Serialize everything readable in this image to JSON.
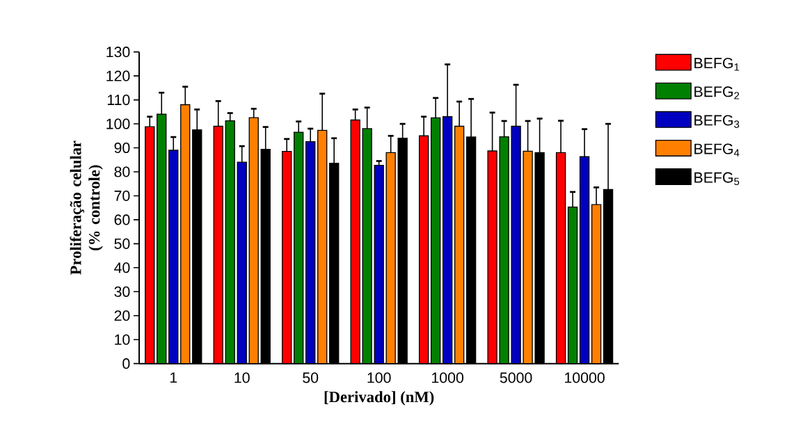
{
  "chart_data": {
    "type": "bar",
    "xlabel": "[Derivado] (nM)",
    "ylabel": "Proliferação celular (% controle)",
    "categories": [
      "1",
      "10",
      "50",
      "100",
      "1000",
      "5000",
      "10000"
    ],
    "series": [
      {
        "name": "BEFG$_{1}$",
        "color": "#ff0000",
        "values": [
          98.8,
          99,
          88.5,
          101.6,
          95,
          88.7,
          88
        ],
        "errors": [
          4.2,
          10.5,
          5.2,
          4.4,
          8,
          16,
          13.3
        ]
      },
      {
        "name": "BEFG$_{2}$",
        "color": "#008000",
        "values": [
          104,
          101.3,
          96.5,
          98,
          102.5,
          94.6,
          65.3
        ],
        "errors": [
          9,
          3.2,
          4.5,
          8.8,
          8.3,
          6.6,
          6.3
        ]
      },
      {
        "name": "BEFG$_{3}$",
        "color": "#0000c0",
        "values": [
          89,
          84,
          92.6,
          82.7,
          103,
          99,
          86.3
        ],
        "errors": [
          5.5,
          6.7,
          5.4,
          1.8,
          21.8,
          17.3,
          11.5
        ]
      },
      {
        "name": "BEFG$_{4}$",
        "color": "#ff8000",
        "values": [
          108,
          102.6,
          97.3,
          88,
          99,
          88.6,
          66.3
        ],
        "errors": [
          7.5,
          3.7,
          15.3,
          7,
          10.3,
          12.6,
          7.2
        ]
      },
      {
        "name": "BEFG$_{5}$",
        "color": "#000000",
        "values": [
          97.5,
          89.4,
          83.6,
          94,
          94.5,
          88,
          72.6
        ],
        "errors": [
          8.5,
          9.3,
          10.4,
          6,
          15.9,
          14.2,
          27.4
        ]
      }
    ],
    "ylim": [
      0,
      130
    ],
    "yticks": [
      0,
      10,
      20,
      30,
      40,
      50,
      60,
      70,
      80,
      90,
      100,
      110,
      120,
      130
    ],
    "legend": "right"
  }
}
